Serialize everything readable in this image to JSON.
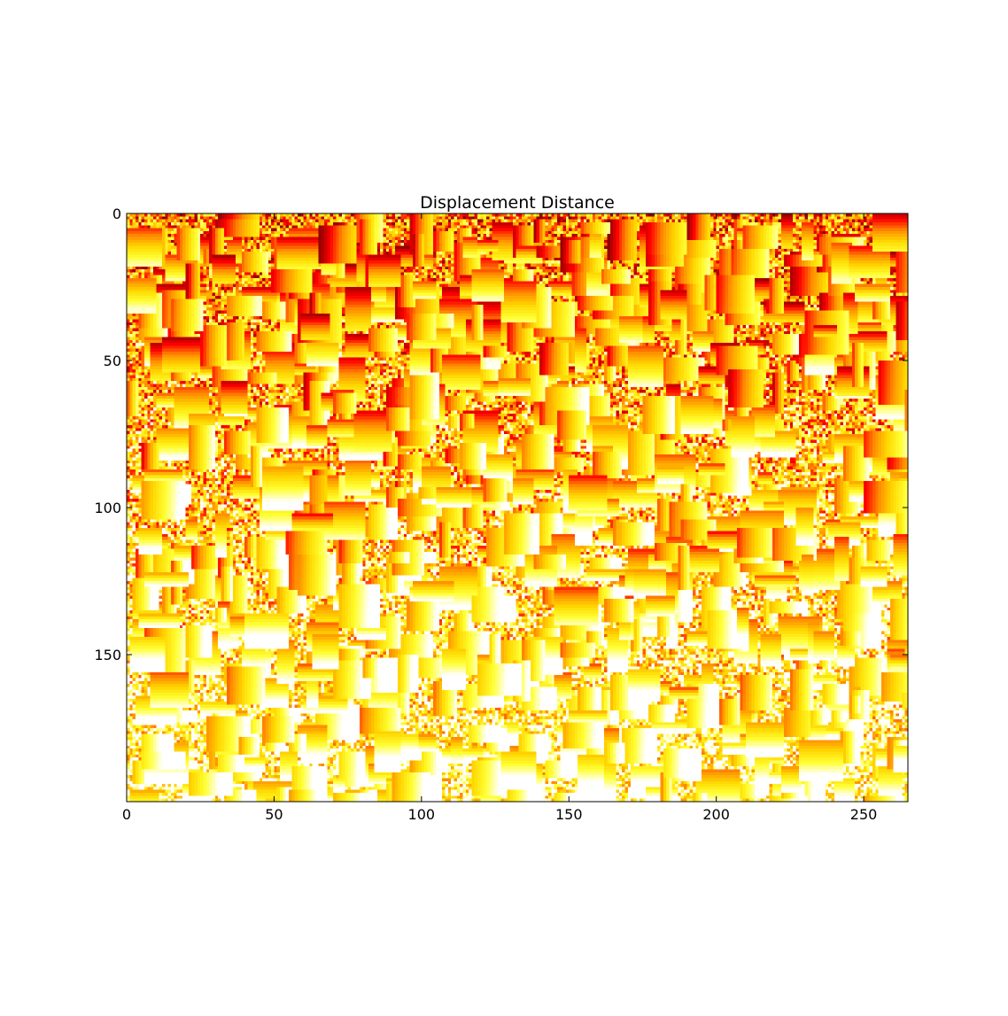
{
  "chart_data": {
    "type": "heatmap",
    "title": "Displacement Distance",
    "xlabel": "",
    "ylabel": "",
    "xlim": [
      0,
      265
    ],
    "ylim": [
      200,
      0
    ],
    "x_ticks": [
      0,
      50,
      100,
      150,
      200,
      250
    ],
    "y_ticks": [
      0,
      50,
      100,
      150
    ],
    "colormap": "hot",
    "colormap_stops": [
      "#000000",
      "#8b0000",
      "#ff0000",
      "#ff8c00",
      "#ffd700",
      "#ffff33",
      "#ffffff"
    ],
    "grid": false,
    "legend": "none"
  }
}
